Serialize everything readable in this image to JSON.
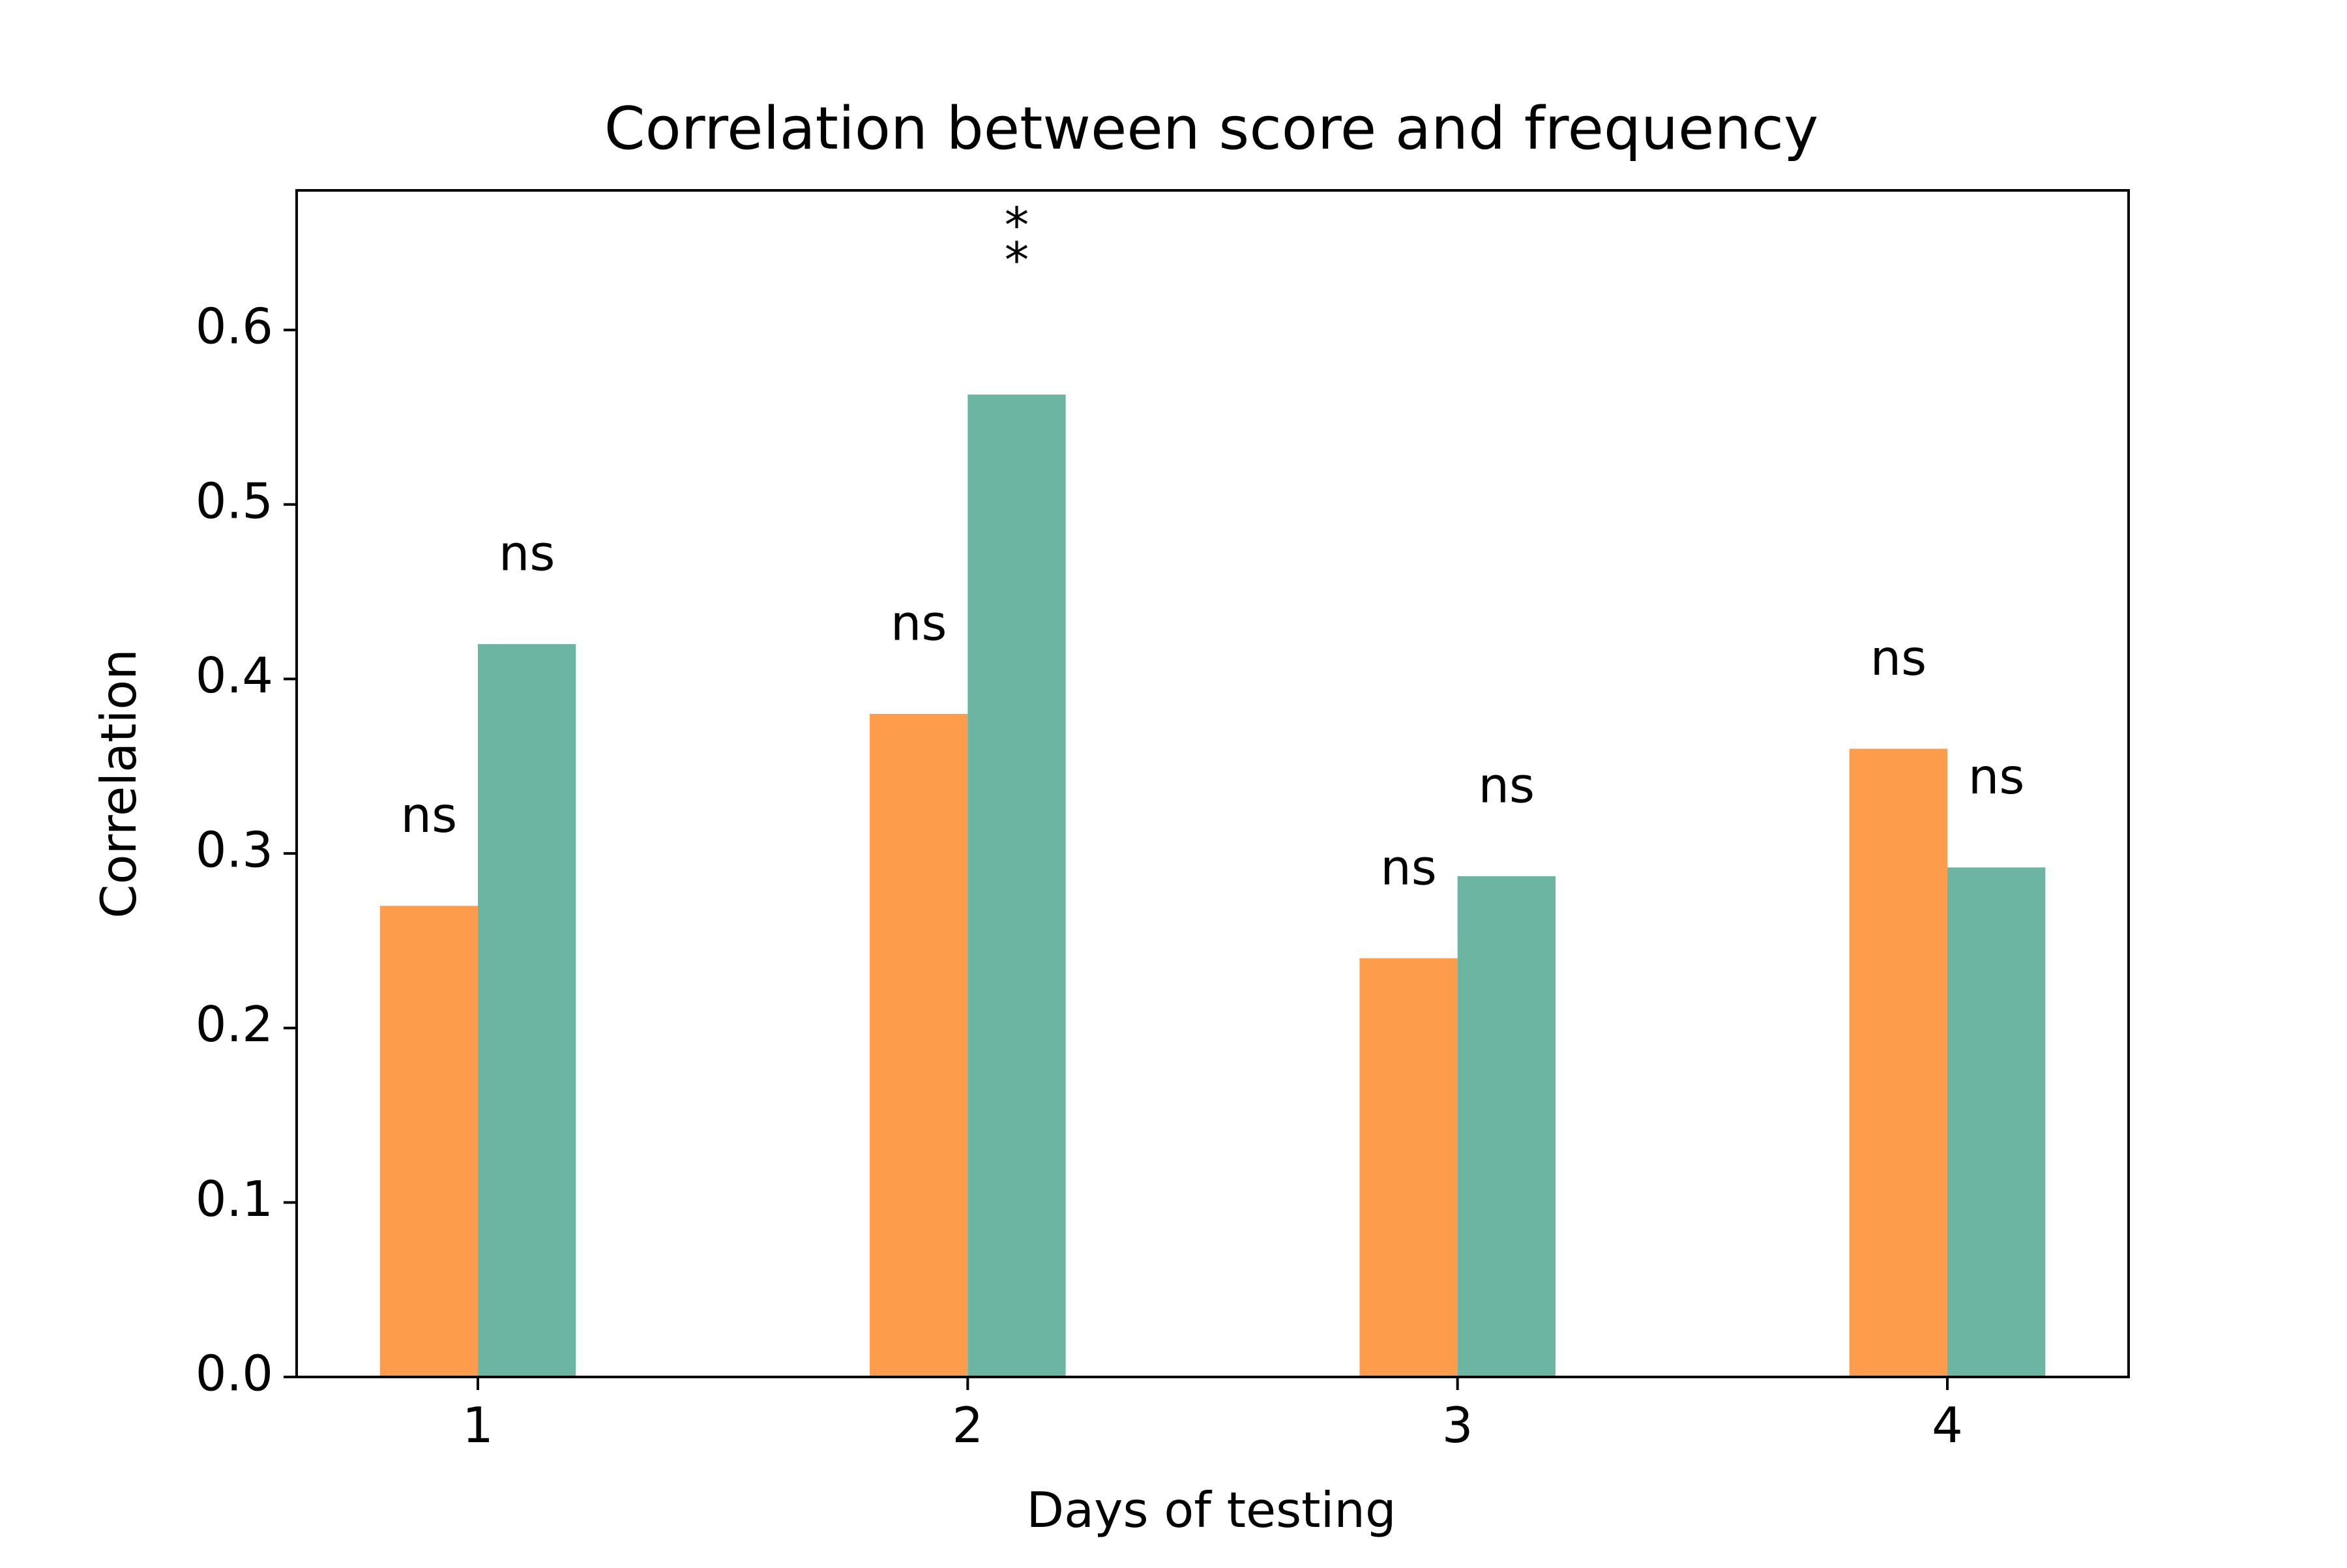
{
  "chart_data": {
    "type": "bar",
    "title": "Correlation between score and frequency",
    "xlabel": "Days of testing",
    "ylabel": "Correlation",
    "categories": [
      "1",
      "2",
      "3",
      "4"
    ],
    "series": [
      {
        "values": [
          0.27,
          0.38,
          0.24,
          0.36
        ],
        "color": "#fd9d4c",
        "annotations": [
          "ns",
          "ns",
          "ns",
          "ns"
        ]
      },
      {
        "values": [
          0.42,
          0.563,
          0.287,
          0.292
        ],
        "color": "#6bb5a2",
        "annotations": [
          "ns",
          "**",
          "ns",
          "ns"
        ]
      }
    ],
    "ylim": [
      0.0,
      0.68
    ],
    "yticks": [
      "0.0",
      "0.1",
      "0.2",
      "0.3",
      "0.4",
      "0.5",
      "0.6"
    ],
    "grid": false,
    "legend": false
  }
}
